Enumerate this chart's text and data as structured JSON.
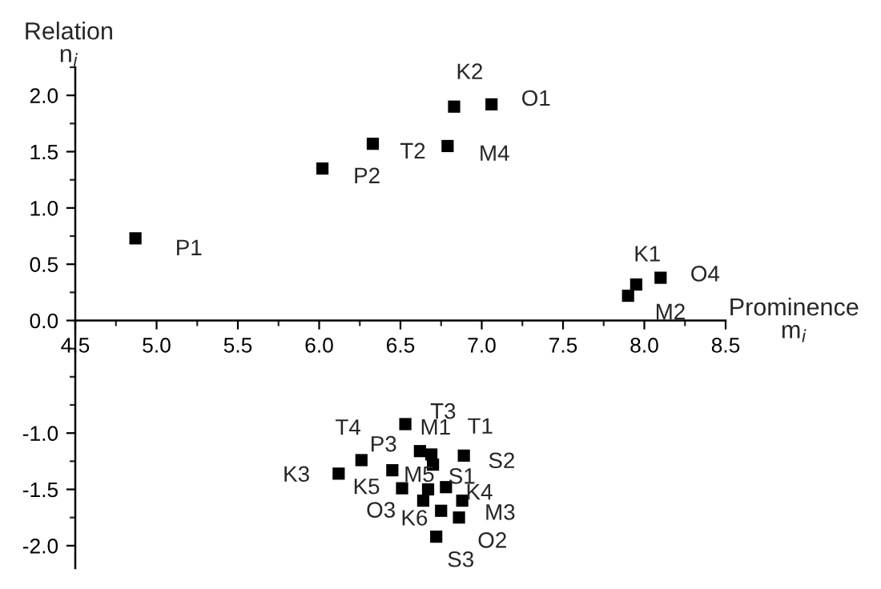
{
  "chart_data": {
    "type": "scatter",
    "xlabel": "Prominence\nm$_{i}$",
    "ylabel": "Relation\nn$_{i}$",
    "xlim": [
      4.5,
      8.5
    ],
    "ylim": [
      -2.2,
      2.25
    ],
    "xticks": [
      {
        "value": 4.5,
        "label": "4.5"
      },
      {
        "value": 5.0,
        "label": "5.0"
      },
      {
        "value": 5.5,
        "label": "5.5"
      },
      {
        "value": 6.0,
        "label": "6.0"
      },
      {
        "value": 6.5,
        "label": "6.5"
      },
      {
        "value": 7.0,
        "label": "7.0"
      },
      {
        "value": 7.5,
        "label": "7.5"
      },
      {
        "value": 8.0,
        "label": "8.0"
      },
      {
        "value": 8.5,
        "label": "8.5"
      }
    ],
    "yticks": [
      {
        "value": -2.0,
        "label": "-2.0"
      },
      {
        "value": -1.5,
        "label": "-1.5"
      },
      {
        "value": -1.0,
        "label": "-1.0"
      },
      {
        "value": 0.0,
        "label": "0.0"
      },
      {
        "value": 0.5,
        "label": "0.5"
      },
      {
        "value": 1.0,
        "label": "1.0"
      },
      {
        "value": 1.5,
        "label": "1.5"
      },
      {
        "value": 2.0,
        "label": "2.0"
      }
    ],
    "grid": false,
    "legend": false,
    "marker": "square",
    "series": [
      {
        "color": "#000000",
        "x": [
          4.87,
          6.02,
          6.33,
          6.79,
          6.83,
          7.06,
          7.95,
          7.9,
          8.1,
          6.53,
          6.26,
          6.12,
          6.45,
          6.62,
          6.69,
          6.7,
          6.89,
          6.51,
          6.67,
          6.78,
          6.64,
          6.88,
          6.75,
          6.86,
          6.72
        ],
        "values": [
          0.73,
          1.35,
          1.57,
          1.55,
          1.9,
          1.92,
          0.32,
          0.22,
          0.38,
          -0.92,
          -1.24,
          -1.36,
          -1.33,
          -1.16,
          -1.19,
          -1.28,
          -1.2,
          -1.49,
          -1.5,
          -1.48,
          -1.6,
          -1.6,
          -1.69,
          -1.75,
          -1.92
        ]
      }
    ],
    "annotations": [
      {
        "text": "P1",
        "x": 4.87,
        "y": 0.73
      },
      {
        "text": "P2",
        "x": 6.02,
        "y": 1.35
      },
      {
        "text": "T2",
        "x": 6.33,
        "y": 1.57
      },
      {
        "text": "M4",
        "x": 6.79,
        "y": 1.55
      },
      {
        "text": "K2",
        "x": 6.83,
        "y": 1.9
      },
      {
        "text": "O1",
        "x": 7.06,
        "y": 1.92
      },
      {
        "text": "K1",
        "x": 7.95,
        "y": 0.32
      },
      {
        "text": "M2",
        "x": 7.9,
        "y": 0.22
      },
      {
        "text": "O4",
        "x": 8.1,
        "y": 0.38
      },
      {
        "text": "T3",
        "x": 6.53,
        "y": -0.92
      },
      {
        "text": "T4",
        "x": 6.26,
        "y": -1.24
      },
      {
        "text": "K3",
        "x": 6.12,
        "y": -1.36
      },
      {
        "text": "P3",
        "x": 6.45,
        "y": -1.33
      },
      {
        "text": "M1",
        "x": 6.62,
        "y": -1.16
      },
      {
        "text": "T1",
        "x": 6.69,
        "y": -1.19
      },
      {
        "text": "S1",
        "x": 6.7,
        "y": -1.28
      },
      {
        "text": "S2",
        "x": 6.89,
        "y": -1.2
      },
      {
        "text": "K5",
        "x": 6.51,
        "y": -1.49
      },
      {
        "text": "M5",
        "x": 6.67,
        "y": -1.5
      },
      {
        "text": "K4",
        "x": 6.78,
        "y": -1.48
      },
      {
        "text": "O3",
        "x": 6.64,
        "y": -1.6
      },
      {
        "text": "M3",
        "x": 6.88,
        "y": -1.6
      },
      {
        "text": "K6",
        "x": 6.75,
        "y": -1.69
      },
      {
        "text": "O2",
        "x": 6.86,
        "y": -1.75
      },
      {
        "text": "S3",
        "x": 6.72,
        "y": -1.92
      }
    ]
  }
}
